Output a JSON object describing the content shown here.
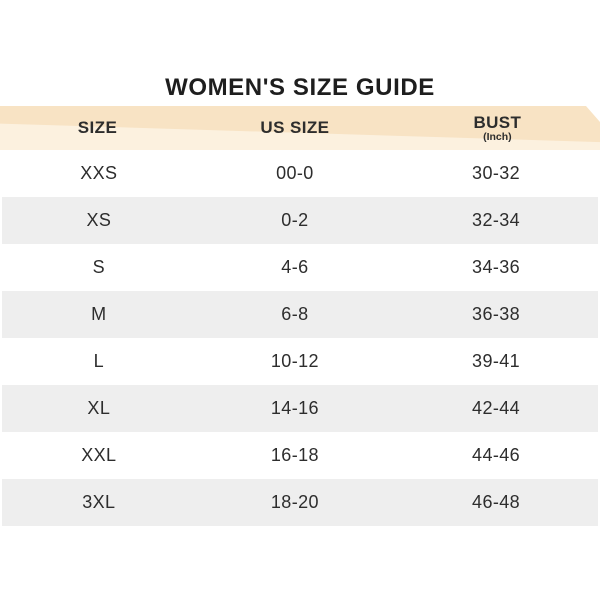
{
  "title": "WOMEN'S SIZE GUIDE",
  "colors": {
    "header_bg": "#f8e3c4",
    "header_bg_light": "#fcf1df",
    "row_bg": "#ffffff",
    "row_alt_bg": "#eeeeee",
    "text_color": "#2d2d2d",
    "title_color": "#1e1e1e"
  },
  "table": {
    "columns": [
      {
        "label": "SIZE",
        "sublabel": ""
      },
      {
        "label": "US SIZE",
        "sublabel": ""
      },
      {
        "label": "BUST",
        "sublabel": "(Inch)"
      }
    ],
    "rows": [
      {
        "size": "XXS",
        "us_size": "00-0",
        "bust": "30-32"
      },
      {
        "size": "XS",
        "us_size": "0-2",
        "bust": "32-34"
      },
      {
        "size": "S",
        "us_size": "4-6",
        "bust": "34-36"
      },
      {
        "size": "M",
        "us_size": "6-8",
        "bust": "36-38"
      },
      {
        "size": "L",
        "us_size": "10-12",
        "bust": "39-41"
      },
      {
        "size": "XL",
        "us_size": "14-16",
        "bust": "42-44"
      },
      {
        "size": "XXL",
        "us_size": "16-18",
        "bust": "44-46"
      },
      {
        "size": "3XL",
        "us_size": "18-20",
        "bust": "46-48"
      }
    ]
  },
  "chart_data": {
    "type": "table",
    "title": "WOMEN'S SIZE GUIDE",
    "columns": [
      "SIZE",
      "US SIZE",
      "BUST (Inch)"
    ],
    "rows": [
      [
        "XXS",
        "00-0",
        "30-32"
      ],
      [
        "XS",
        "0-2",
        "32-34"
      ],
      [
        "S",
        "4-6",
        "34-36"
      ],
      [
        "M",
        "6-8",
        "36-38"
      ],
      [
        "L",
        "10-12",
        "39-41"
      ],
      [
        "XL",
        "14-16",
        "42-44"
      ],
      [
        "XXL",
        "16-18",
        "44-46"
      ],
      [
        "3XL",
        "18-20",
        "46-48"
      ]
    ],
    "layout_hints": {
      "header_background": "#f8e3c4",
      "alternating_row_background": "#eeeeee",
      "all_text_centered": true
    }
  }
}
